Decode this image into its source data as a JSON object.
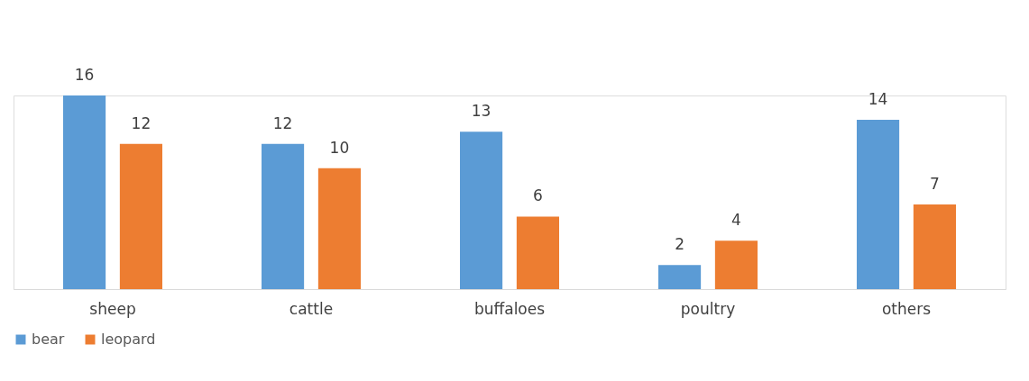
{
  "chart_data": {
    "type": "bar",
    "categories": [
      "sheep",
      "cattle",
      "buffaloes",
      "poultry",
      "others"
    ],
    "series": [
      {
        "name": "bear",
        "color": "#5b9bd5",
        "values": [
          16,
          12,
          13,
          2,
          14
        ]
      },
      {
        "name": "leopard",
        "color": "#ed7d31",
        "values": [
          12,
          10,
          6,
          4,
          7
        ]
      }
    ],
    "data_labels": true,
    "legend": "bottom",
    "grid": false
  }
}
